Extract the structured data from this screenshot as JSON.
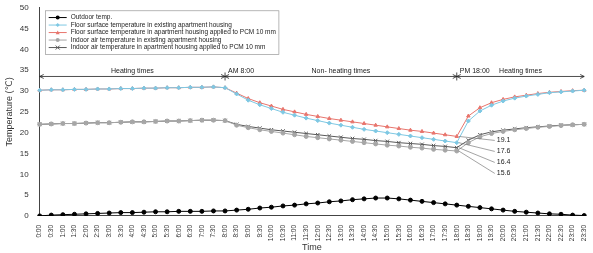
{
  "chart_data": {
    "type": "line",
    "x_label": "Time",
    "y_label": "Temperature (℃)",
    "categories": [
      "0:00",
      "0:30",
      "1:00",
      "1:30",
      "2:00",
      "2:30",
      "3:00",
      "3:30",
      "4:00",
      "4:30",
      "5:00",
      "5:30",
      "6:00",
      "6:30",
      "7:00",
      "7:30",
      "8:00",
      "8:30",
      "9:00",
      "9:30",
      "10:00",
      "10:30",
      "11:00",
      "11:30",
      "12:00",
      "12:30",
      "13:00",
      "13:30",
      "14:00",
      "14:30",
      "15:00",
      "15:30",
      "16:00",
      "16:30",
      "17:00",
      "17:30",
      "18:00",
      "18:30",
      "19:00",
      "19:30",
      "20:00",
      "20:30",
      "21:00",
      "21:30",
      "22:00",
      "22:30",
      "23:00",
      "23:30"
    ],
    "series": [
      {
        "name": "Outdoor temp.",
        "color": "#000000",
        "marker": "circle",
        "line_style": "solid",
        "values": [
          0.0,
          0.2,
          0.3,
          0.4,
          0.5,
          0.6,
          0.7,
          0.8,
          0.8,
          0.9,
          1.0,
          1.0,
          1.1,
          1.1,
          1.1,
          1.2,
          1.2,
          1.4,
          1.6,
          1.9,
          2.1,
          2.4,
          2.6,
          2.9,
          3.1,
          3.4,
          3.6,
          3.9,
          4.1,
          4.3,
          4.3,
          4.1,
          3.8,
          3.5,
          3.2,
          2.9,
          2.6,
          2.3,
          2.0,
          1.7,
          1.4,
          1.1,
          0.9,
          0.7,
          0.5,
          0.4,
          0.2,
          0.1
        ]
      },
      {
        "name": "Floor surface temperature in existing apartment housing",
        "color": "#7ec8e3",
        "marker": "diamond",
        "line_style": "solid",
        "values": [
          30.2,
          30.3,
          30.3,
          30.4,
          30.4,
          30.5,
          30.5,
          30.6,
          30.6,
          30.7,
          30.7,
          30.8,
          30.8,
          30.9,
          30.9,
          31.0,
          30.8,
          29.3,
          27.8,
          26.7,
          25.8,
          24.9,
          24.2,
          23.5,
          22.9,
          22.3,
          21.8,
          21.3,
          20.8,
          20.4,
          20.0,
          19.6,
          19.2,
          18.8,
          18.4,
          18.0,
          17.6,
          22.8,
          25.2,
          26.6,
          27.6,
          28.3,
          28.8,
          29.2,
          29.6,
          29.8,
          30.0,
          30.2
        ]
      },
      {
        "name": "Floor surface temperature in apartment housing applied to PCM 10 mm",
        "color": "#e8756d",
        "marker": "triangle",
        "line_style": "solid",
        "values": [
          30.2,
          30.3,
          30.3,
          30.4,
          30.4,
          30.5,
          30.5,
          30.6,
          30.6,
          30.7,
          30.7,
          30.8,
          30.8,
          30.9,
          30.9,
          31.0,
          30.8,
          29.5,
          28.2,
          27.2,
          26.4,
          25.6,
          25.0,
          24.4,
          23.9,
          23.4,
          23.0,
          22.6,
          22.2,
          21.8,
          21.4,
          21.0,
          20.6,
          20.3,
          19.9,
          19.5,
          19.1,
          24.0,
          26.0,
          27.2,
          28.0,
          28.6,
          29.0,
          29.4,
          29.7,
          29.9,
          30.1,
          30.2
        ]
      },
      {
        "name": "Indoor air temperature in existing apartment housing",
        "color": "#a6a6a6",
        "marker": "circle",
        "line_style": "solid",
        "values": [
          22.0,
          22.1,
          22.2,
          22.2,
          22.3,
          22.4,
          22.4,
          22.5,
          22.6,
          22.6,
          22.7,
          22.8,
          22.8,
          22.9,
          23.0,
          23.0,
          22.9,
          21.8,
          21.2,
          20.7,
          20.3,
          19.9,
          19.5,
          19.1,
          18.8,
          18.5,
          18.2,
          17.9,
          17.6,
          17.3,
          17.0,
          16.8,
          16.5,
          16.3,
          16.0,
          15.8,
          15.6,
          17.6,
          19.0,
          19.8,
          20.3,
          20.7,
          21.0,
          21.3,
          21.5,
          21.7,
          21.9,
          22.0
        ]
      },
      {
        "name": "Indoor air temperature in apartment housing applied to PCM 10 mm",
        "color": "#595959",
        "marker": "cross",
        "line_style": "solid",
        "values": [
          22.0,
          22.1,
          22.2,
          22.2,
          22.3,
          22.4,
          22.4,
          22.5,
          22.6,
          22.6,
          22.7,
          22.8,
          22.8,
          22.9,
          23.0,
          23.0,
          22.9,
          22.0,
          21.5,
          21.1,
          20.7,
          20.4,
          20.1,
          19.8,
          19.5,
          19.2,
          18.9,
          18.6,
          18.4,
          18.1,
          17.9,
          17.6,
          17.4,
          17.2,
          16.9,
          16.7,
          16.4,
          18.2,
          19.5,
          20.2,
          20.6,
          20.9,
          21.2,
          21.4,
          21.6,
          21.8,
          21.9,
          22.0
        ]
      }
    ],
    "ylim": [
      0,
      50
    ],
    "yticks": [
      0,
      5,
      10,
      15,
      20,
      25,
      30,
      35,
      40,
      45,
      50
    ],
    "grid": false,
    "legend": "upper left",
    "periods": [
      {
        "label": "Heating times",
        "start": "0:00",
        "end": "8:00"
      },
      {
        "label": "Non- heating times",
        "start": "8:00",
        "end": "18:00"
      },
      {
        "label": "Heating times",
        "start": "18:00",
        "end": "23:30"
      }
    ],
    "markers": [
      {
        "label": "AM 8:00",
        "x": "8:00"
      },
      {
        "label": "PM 18:00",
        "x": "18:00"
      }
    ],
    "callouts": [
      {
        "x": "18:00",
        "value": 19.1
      },
      {
        "x": "18:00",
        "value": 17.6
      },
      {
        "x": "18:00",
        "value": 16.4
      },
      {
        "x": "18:00",
        "value": 15.6
      }
    ]
  }
}
